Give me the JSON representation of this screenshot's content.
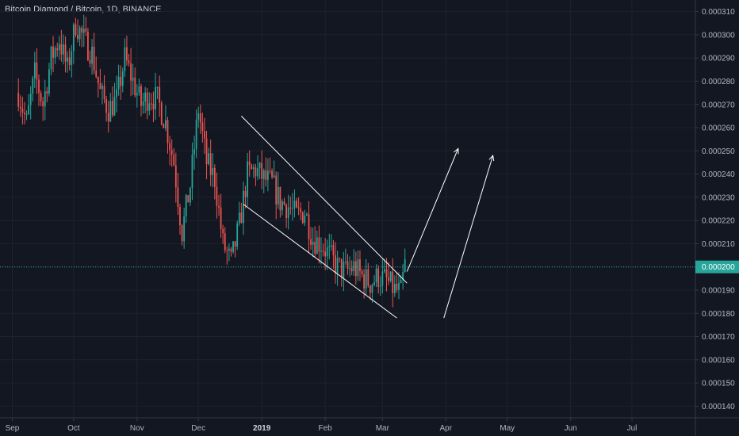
{
  "chart_data": {
    "type": "candlestick",
    "title": "Bitcoin Diamond / Bitcoin, 1D, BINANCE",
    "ylim": [
      0.000135,
      0.000315
    ],
    "yticks": [
      "0.000310",
      "0.000300",
      "0.000290",
      "0.000280",
      "0.000270",
      "0.000260",
      "0.000250",
      "0.000240",
      "0.000230",
      "0.000220",
      "0.000210",
      "0.000200",
      "0.000190",
      "0.000180",
      "0.000170",
      "0.000160",
      "0.000150",
      "0.000140"
    ],
    "xticks": [
      {
        "label": "Sep",
        "date": "2018-09-01"
      },
      {
        "label": "Oct",
        "date": "2018-10-01"
      },
      {
        "label": "Nov",
        "date": "2018-11-01"
      },
      {
        "label": "Dec",
        "date": "2018-12-01"
      },
      {
        "label": "2019",
        "date": "2019-01-01",
        "bold": true
      },
      {
        "label": "Feb",
        "date": "2019-02-01"
      },
      {
        "label": "Mar",
        "date": "2019-03-01"
      },
      {
        "label": "Apr",
        "date": "2019-04-01"
      },
      {
        "label": "May",
        "date": "2019-05-01"
      },
      {
        "label": "Jun",
        "date": "2019-06-01"
      },
      {
        "label": "Jul",
        "date": "2019-07-01"
      }
    ],
    "xlim": [
      "2018-08-26",
      "2019-08-01"
    ],
    "last_price": {
      "label": "0.000200",
      "value": 0.0002
    },
    "colors": {
      "up": "#26a69a",
      "down": "#ef5350",
      "background": "#131722",
      "drawing": "#ffffff",
      "price_line": "#26a69a"
    },
    "candles_anchor_close": [
      [
        "2018-09-04",
        0.000275
      ],
      [
        "2018-09-08",
        0.000262
      ],
      [
        "2018-09-12",
        0.000283
      ],
      [
        "2018-09-16",
        0.00027
      ],
      [
        "2018-09-20",
        0.00029
      ],
      [
        "2018-09-24",
        0.000298
      ],
      [
        "2018-09-28",
        0.000285
      ],
      [
        "2018-10-02",
        0.000305
      ],
      [
        "2018-10-06",
        0.000298
      ],
      [
        "2018-10-10",
        0.000292
      ],
      [
        "2018-10-14",
        0.000275
      ],
      [
        "2018-10-18",
        0.000268
      ],
      [
        "2018-10-22",
        0.000272
      ],
      [
        "2018-10-26",
        0.00029
      ],
      [
        "2018-10-30",
        0.00028
      ],
      [
        "2018-11-03",
        0.00027
      ],
      [
        "2018-11-07",
        0.000274
      ],
      [
        "2018-11-11",
        0.000272
      ],
      [
        "2018-11-15",
        0.000262
      ],
      [
        "2018-11-19",
        0.000245
      ],
      [
        "2018-11-23",
        0.000215
      ],
      [
        "2018-11-27",
        0.000235
      ],
      [
        "2018-12-01",
        0.000268
      ],
      [
        "2018-12-05",
        0.000245
      ],
      [
        "2018-12-09",
        0.000238
      ],
      [
        "2018-12-13",
        0.00021
      ],
      [
        "2018-12-17",
        0.000202
      ],
      [
        "2018-12-21",
        0.000218
      ],
      [
        "2018-12-25",
        0.00024
      ],
      [
        "2018-12-29",
        0.000242
      ],
      [
        "2019-01-02",
        0.000238
      ],
      [
        "2019-01-06",
        0.000236
      ],
      [
        "2019-01-10",
        0.000228
      ],
      [
        "2019-01-14",
        0.000226
      ],
      [
        "2019-01-18",
        0.000222
      ],
      [
        "2019-01-22",
        0.000224
      ],
      [
        "2019-01-26",
        0.000212
      ],
      [
        "2019-01-30",
        0.00021
      ],
      [
        "2019-02-03",
        0.000205
      ],
      [
        "2019-02-07",
        0.0002
      ],
      [
        "2019-02-11",
        0.000198
      ],
      [
        "2019-02-15",
        0.0002
      ],
      [
        "2019-02-19",
        0.000196
      ],
      [
        "2019-02-23",
        0.000193
      ],
      [
        "2019-02-27",
        0.000196
      ],
      [
        "2019-03-03",
        0.000194
      ],
      [
        "2019-03-07",
        0.00019
      ],
      [
        "2019-03-10",
        0.000189
      ],
      [
        "2019-03-12",
        0.000201
      ]
    ]
  }
}
